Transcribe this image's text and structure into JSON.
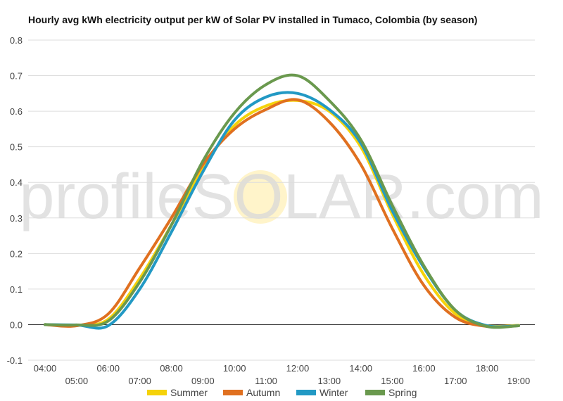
{
  "chart_data": {
    "type": "line",
    "title": "Hourly avg kWh electricity output per kW of Solar PV installed in Tumaco, Colombia (by season)",
    "xlabel": "",
    "ylabel": "",
    "ylim": [
      -0.1,
      0.8
    ],
    "y_ticks": [
      "-0.1",
      "0.0",
      "0.1",
      "0.2",
      "0.3",
      "0.4",
      "0.5",
      "0.6",
      "0.7",
      "0.8"
    ],
    "x_ticks_upper": [
      "04:00",
      "06:00",
      "08:00",
      "10:00",
      "12:00",
      "14:00",
      "16:00",
      "18:00"
    ],
    "x_ticks_lower": [
      "05:00",
      "07:00",
      "09:00",
      "11:00",
      "13:00",
      "15:00",
      "17:00",
      "19:00"
    ],
    "x": [
      "04:00",
      "05:00",
      "06:00",
      "07:00",
      "08:00",
      "09:00",
      "10:00",
      "11:00",
      "12:00",
      "13:00",
      "14:00",
      "15:00",
      "16:00",
      "17:00",
      "18:00",
      "19:00"
    ],
    "grid": true,
    "legend_position": "bottom",
    "watermark": "profileSOLAR.com",
    "series": [
      {
        "name": "Summer",
        "color": "#f5d20a",
        "values": [
          0.0,
          -0.002,
          0.015,
          0.13,
          0.28,
          0.44,
          0.56,
          0.615,
          0.63,
          0.6,
          0.5,
          0.31,
          0.14,
          0.03,
          -0.003,
          -0.002
        ]
      },
      {
        "name": "Autumn",
        "color": "#e07020",
        "values": [
          0.0,
          -0.003,
          0.03,
          0.16,
          0.3,
          0.45,
          0.55,
          0.605,
          0.632,
          0.57,
          0.45,
          0.27,
          0.11,
          0.02,
          -0.005,
          -0.003
        ]
      },
      {
        "name": "Winter",
        "color": "#2299c4",
        "values": [
          0.0,
          -0.001,
          -0.003,
          0.1,
          0.26,
          0.43,
          0.575,
          0.64,
          0.65,
          0.605,
          0.51,
          0.32,
          0.16,
          0.04,
          -0.003,
          -0.003
        ]
      },
      {
        "name": "Spring",
        "color": "#6a994e",
        "values": [
          0.0,
          -0.001,
          0.01,
          0.12,
          0.28,
          0.46,
          0.595,
          0.675,
          0.7,
          0.63,
          0.52,
          0.335,
          0.165,
          0.04,
          -0.005,
          -0.003
        ]
      }
    ]
  }
}
